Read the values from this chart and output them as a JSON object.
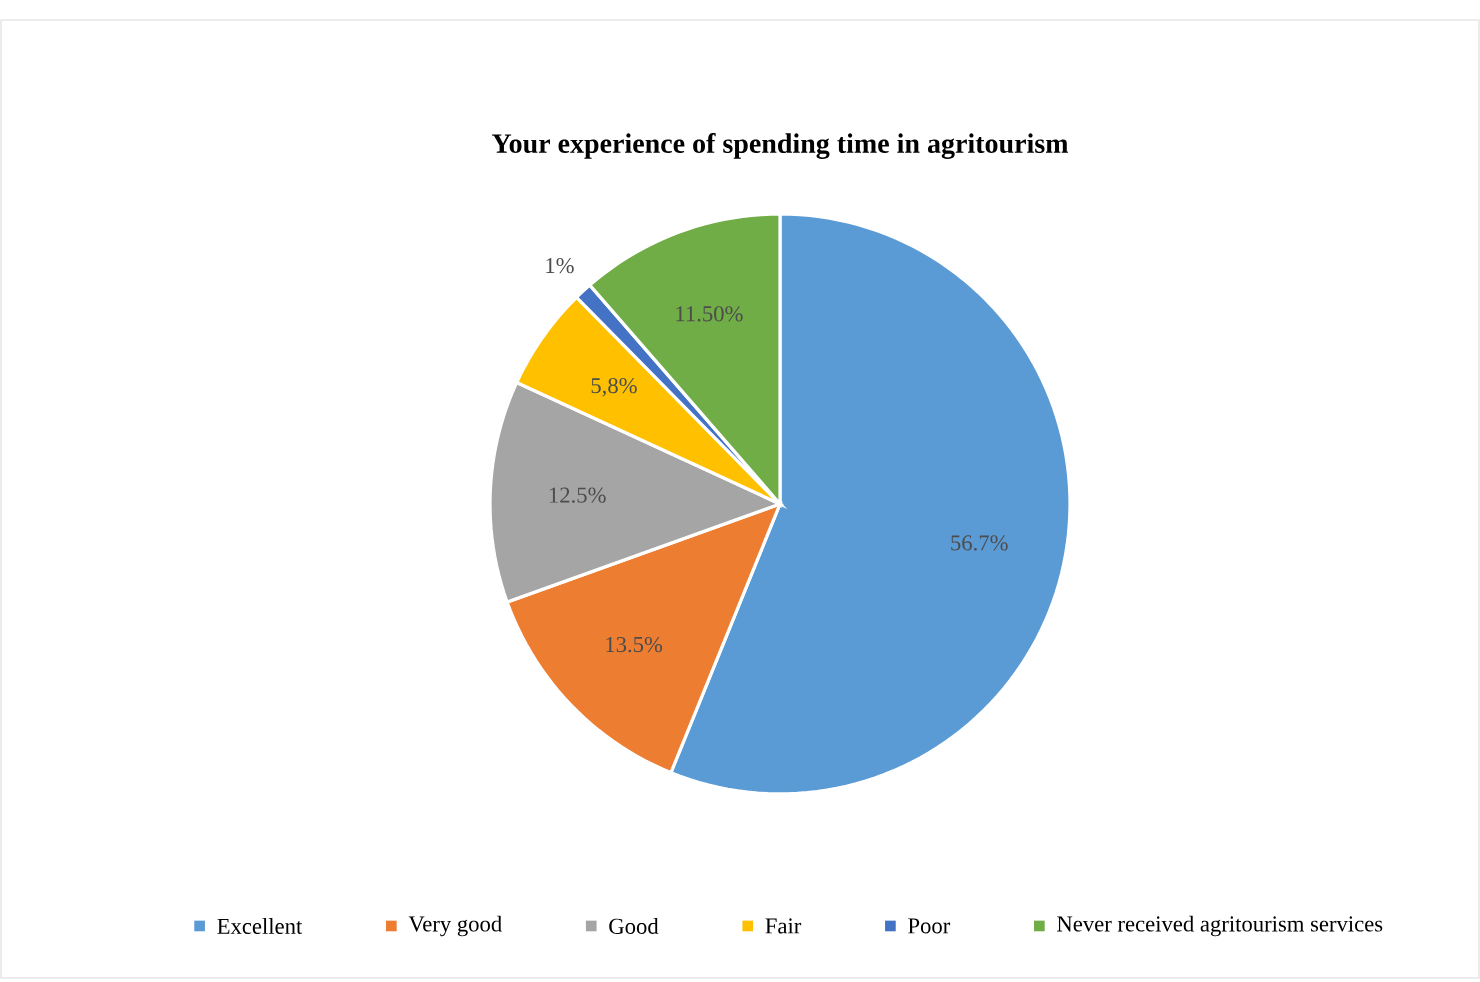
{
  "chart_data": {
    "type": "pie",
    "title": "Your experience of spending time in agritourism",
    "categories": [
      "Excellent",
      "Very good",
      "Good",
      "Fair",
      "Poor",
      "Never received agritourism services"
    ],
    "values": [
      56.7,
      13.5,
      12.5,
      5.8,
      1,
      11.5
    ],
    "value_labels": [
      "56.7%",
      "13.5%",
      "12.5%",
      "5,8%",
      "1%",
      "11.50%"
    ],
    "colors": [
      "#5b9bd5",
      "#ed7d31",
      "#a5a5a5",
      "#ffc000",
      "#4472c4",
      "#70ad47"
    ],
    "legend": "bottom"
  }
}
